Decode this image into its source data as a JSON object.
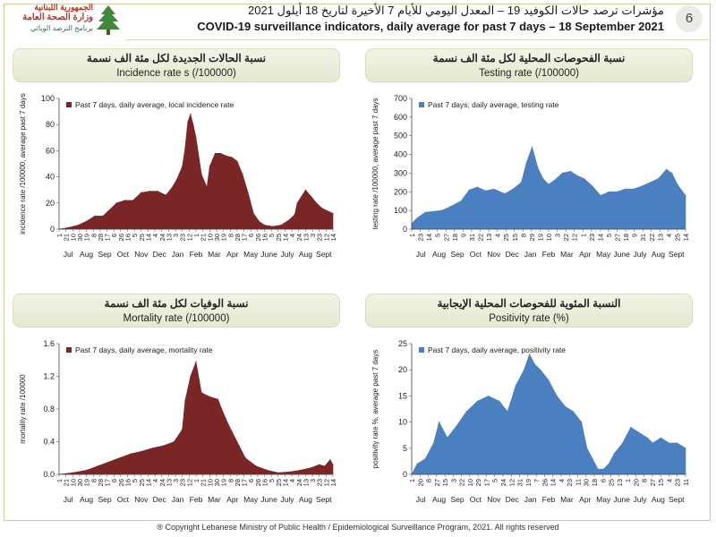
{
  "header": {
    "logo_line1": "الجمهورية اللبنانية",
    "logo_line2": "وزارة الصحة العامة",
    "logo_line3": "برنامج الترصد الوبائي",
    "title_ar": "مؤشرات ترصد حالات الكوفيد 19 – المعدل اليومي للأيام 7 الأخيرة لتاريخ 18 أيلول 2021",
    "title_en": "COVID-19 surveillance indicators, daily average for past 7 days – 18 September 2021",
    "page_number": "6"
  },
  "panels": {
    "incidence": {
      "title_ar": "نسبة الحالات الجديدة لكل مئة الف نسمة",
      "title_en": "Incidence rate s  (/100000)"
    },
    "testing": {
      "title_ar": "نسبة الفحوصات المحلية لكل مئة الف نسمة",
      "title_en": "Testing rate (/100000)"
    },
    "mortality": {
      "title_ar": "نسبة الوفيات لكل مئة الف نسمة",
      "title_en": "Mortality rate (/100000)"
    },
    "positivity": {
      "title_ar": "النسبة المئوية للفحوصات المحلية الإيجابية",
      "title_en": "Positivity rate (%)"
    }
  },
  "colors": {
    "dark_red": "#7a2626",
    "blue": "#4a7fc0",
    "title_bg": "#e8ecd5"
  },
  "footer": "® Copyright Lebanese Ministry of Public Health / Epidemiological Surveillance Program, 2021. All rights reserved",
  "chart_data": [
    {
      "id": "incidence",
      "type": "area",
      "title": "Incidence rate s  (/100000)",
      "legend": "Past 7 days, daily average, local incidence rate",
      "ylabel": "incidence rate /100000, average past 7 days",
      "ylim": [
        0,
        100
      ],
      "yticks": [
        0,
        20,
        40,
        60,
        80,
        100
      ],
      "ytick_fmt": "int",
      "xlim": [
        0,
        1
      ],
      "color": "#7a2626",
      "day_ticks": [
        "1",
        "21",
        "10",
        "30",
        "19",
        "8",
        "28",
        "17",
        "6",
        "26",
        "16",
        "5",
        "25",
        "14",
        "4",
        "24",
        "13",
        "3",
        "23",
        "12",
        "1",
        "21",
        "10",
        "30",
        "19",
        "8",
        "28",
        "17",
        "6",
        "26",
        "16",
        "5",
        "25",
        "14",
        "4",
        "24",
        "13",
        "3",
        "23",
        "12",
        "14"
      ],
      "months": [
        "Jul",
        "Aug",
        "Sep",
        "Oct",
        "Nov",
        "Dec",
        "Jan",
        "Feb",
        "Mar",
        "Apr",
        "May",
        "June",
        "July",
        "Aug",
        "Sept"
      ],
      "x": [
        0,
        0.03,
        0.07,
        0.1,
        0.13,
        0.16,
        0.18,
        0.21,
        0.24,
        0.27,
        0.3,
        0.33,
        0.36,
        0.39,
        0.41,
        0.43,
        0.45,
        0.46,
        0.47,
        0.48,
        0.49,
        0.5,
        0.52,
        0.54,
        0.55,
        0.57,
        0.59,
        0.61,
        0.63,
        0.65,
        0.67,
        0.69,
        0.71,
        0.73,
        0.75,
        0.78,
        0.81,
        0.84,
        0.86,
        0.87,
        0.9,
        0.92,
        0.94,
        0.96,
        1
      ],
      "values": [
        0,
        1,
        3,
        6,
        10,
        10,
        14,
        20,
        22,
        22,
        28,
        29,
        29,
        26,
        31,
        38,
        48,
        62,
        82,
        88,
        80,
        70,
        42,
        32,
        48,
        58,
        58,
        56,
        55,
        52,
        42,
        28,
        12,
        6,
        3,
        2,
        3,
        7,
        11,
        20,
        30,
        25,
        20,
        16,
        12
      ]
    },
    {
      "id": "testing",
      "type": "area",
      "title": "Testing rate (/100000)",
      "legend": "Past 7 days, daily average, testing rate",
      "ylabel": "testing rate /100000, average past 7 days",
      "ylim": [
        0,
        700
      ],
      "yticks": [
        0,
        100,
        200,
        300,
        400,
        500,
        600,
        700
      ],
      "ytick_fmt": "int",
      "xlim": [
        0,
        1
      ],
      "color": "#4a7fc0",
      "day_ticks": [
        "1",
        "23",
        "14",
        "5",
        "27",
        "18",
        "9",
        "31",
        "22",
        "13",
        "4",
        "25",
        "15",
        "8",
        "29",
        "19",
        "10",
        "3",
        "22",
        "12",
        "1",
        "23",
        "14",
        "5",
        "27",
        "18",
        "9",
        "31",
        "22",
        "13",
        "4",
        "25",
        "14"
      ],
      "months": [
        "Jul",
        "Aug",
        "Sep",
        "Oct",
        "Nov",
        "Dec",
        "Jan",
        "Feb",
        "Mar",
        "Apr",
        "May",
        "June",
        "July",
        "Aug",
        "Sept"
      ],
      "x": [
        0,
        0.02,
        0.05,
        0.08,
        0.11,
        0.14,
        0.18,
        0.21,
        0.24,
        0.27,
        0.3,
        0.34,
        0.37,
        0.4,
        0.42,
        0.44,
        0.46,
        0.48,
        0.5,
        0.52,
        0.55,
        0.58,
        0.6,
        0.63,
        0.66,
        0.69,
        0.72,
        0.75,
        0.78,
        0.81,
        0.84,
        0.87,
        0.9,
        0.93,
        0.95,
        0.97,
        1
      ],
      "values": [
        30,
        60,
        90,
        95,
        100,
        120,
        150,
        210,
        225,
        205,
        215,
        190,
        215,
        250,
        360,
        440,
        330,
        270,
        240,
        260,
        300,
        310,
        290,
        270,
        230,
        180,
        200,
        200,
        215,
        215,
        230,
        250,
        270,
        320,
        300,
        240,
        180
      ]
    },
    {
      "id": "mortality",
      "type": "area",
      "title": "Mortality rate (/100000)",
      "legend": "Past 7 days, daily average, mortality rate",
      "ylabel": "mortality rate /100000",
      "ylim": [
        0,
        1.6
      ],
      "yticks": [
        0,
        0.4,
        0.8,
        1.2,
        1.6
      ],
      "ytick_fmt": "dec1",
      "xlim": [
        0,
        1
      ],
      "color": "#7a2626",
      "day_ticks": [
        "1",
        "21",
        "10",
        "30",
        "19",
        "8",
        "28",
        "17",
        "6",
        "26",
        "16",
        "5",
        "25",
        "14",
        "4",
        "24",
        "13",
        "3",
        "23",
        "12",
        "1",
        "21",
        "10",
        "30",
        "19",
        "8",
        "28",
        "17",
        "6",
        "26",
        "16",
        "5",
        "25",
        "14",
        "4",
        "24",
        "13",
        "3",
        "23",
        "12",
        "14"
      ],
      "months": [
        "Jul",
        "Aug",
        "Sep",
        "Oct",
        "Nov",
        "Dec",
        "Jan",
        "Feb",
        "Mar",
        "Apr",
        "May",
        "June",
        "July",
        "Aug",
        "Sept"
      ],
      "x": [
        0,
        0.05,
        0.1,
        0.14,
        0.18,
        0.22,
        0.26,
        0.3,
        0.34,
        0.38,
        0.42,
        0.45,
        0.46,
        0.48,
        0.5,
        0.52,
        0.55,
        0.58,
        0.6,
        0.62,
        0.65,
        0.68,
        0.72,
        0.76,
        0.8,
        0.84,
        0.88,
        0.92,
        0.95,
        0.97,
        0.99,
        1
      ],
      "values": [
        0,
        0.02,
        0.05,
        0.1,
        0.15,
        0.2,
        0.25,
        0.28,
        0.32,
        0.35,
        0.4,
        0.55,
        0.9,
        1.2,
        1.38,
        1.0,
        0.95,
        0.92,
        0.75,
        0.6,
        0.4,
        0.2,
        0.1,
        0.05,
        0.02,
        0.03,
        0.05,
        0.08,
        0.12,
        0.1,
        0.18,
        0.12
      ]
    },
    {
      "id": "positivity",
      "type": "area",
      "title": "Positivity rate (%)",
      "legend": "Past 7 days, daily average, positivity rate",
      "ylabel": "positivity rate %, average past 7 days",
      "ylim": [
        0,
        25
      ],
      "yticks": [
        0,
        5,
        10,
        15,
        20,
        25
      ],
      "ytick_fmt": "int",
      "xlim": [
        0,
        1
      ],
      "color": "#4a7fc0",
      "day_ticks": [
        "1",
        "20",
        "8",
        "27",
        "15",
        "3",
        "22",
        "10",
        "29",
        "17",
        "5",
        "24",
        "12",
        "31",
        "19",
        "7",
        "26",
        "14",
        "4",
        "23",
        "11",
        "30",
        "18",
        "6",
        "25",
        "13",
        "1",
        "20",
        "8",
        "27",
        "15",
        "4",
        "23",
        "11"
      ],
      "months": [
        "Jul",
        "Aug",
        "Sep",
        "Oct",
        "Nov",
        "Dec",
        "Jan",
        "Feb",
        "Mar",
        "Apr",
        "May",
        "June",
        "July",
        "Aug",
        "Sept"
      ],
      "x": [
        0,
        0.02,
        0.05,
        0.08,
        0.1,
        0.13,
        0.16,
        0.2,
        0.24,
        0.28,
        0.32,
        0.35,
        0.38,
        0.41,
        0.43,
        0.45,
        0.47,
        0.5,
        0.53,
        0.56,
        0.59,
        0.62,
        0.64,
        0.66,
        0.68,
        0.7,
        0.72,
        0.74,
        0.77,
        0.8,
        0.83,
        0.86,
        0.88,
        0.91,
        0.94,
        0.97,
        1
      ],
      "values": [
        0,
        2,
        3,
        6,
        10,
        7,
        9,
        12,
        14,
        15,
        14,
        12,
        17,
        20,
        23,
        21,
        20,
        18,
        15,
        13,
        12,
        10,
        5,
        3,
        1,
        1,
        2,
        4,
        6,
        9,
        8,
        7,
        6,
        7,
        6,
        6,
        5
      ]
    }
  ]
}
